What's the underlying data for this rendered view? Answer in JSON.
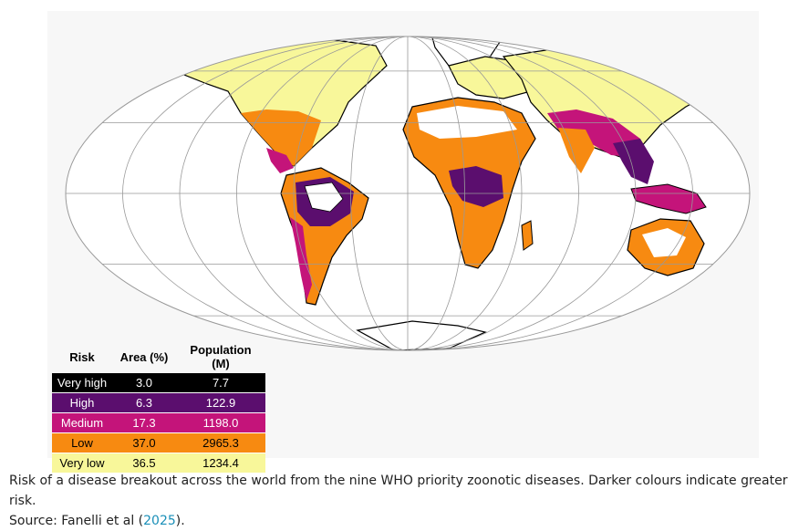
{
  "legend": {
    "headers": [
      "Risk",
      "Area (%)",
      "Population (M)"
    ],
    "rows": [
      {
        "risk": "Very high",
        "area": "3.0",
        "population": "7.7",
        "color": "#000000",
        "text_color": "#ffffff"
      },
      {
        "risk": "High",
        "area": "6.3",
        "population": "122.9",
        "color": "#5b0e6e",
        "text_color": "#ffffff"
      },
      {
        "risk": "Medium",
        "area": "17.3",
        "population": "1198.0",
        "color": "#c4147a",
        "text_color": "#ffffff"
      },
      {
        "risk": "Low",
        "area": "37.0",
        "population": "2965.3",
        "color": "#f78a11",
        "text_color": "#000000"
      },
      {
        "risk": "Very low",
        "area": "36.5",
        "population": "1234.4",
        "color": "#f8f79a",
        "text_color": "#000000"
      }
    ]
  },
  "map": {
    "projection": "Mollweide",
    "colors": {
      "very_high": "#000000",
      "high": "#5b0e6e",
      "medium": "#c4147a",
      "low": "#f78a11",
      "very_low": "#f8f79a",
      "graticule": "#999999",
      "coast": "#000000"
    }
  },
  "caption": {
    "text": "Risk of a disease breakout across the world from the nine WHO priority zoonotic diseases. Darker colours indicate greater risk.",
    "source_prefix": "Source: Fanelli et al (",
    "source_link": "2025",
    "source_suffix": ")."
  }
}
